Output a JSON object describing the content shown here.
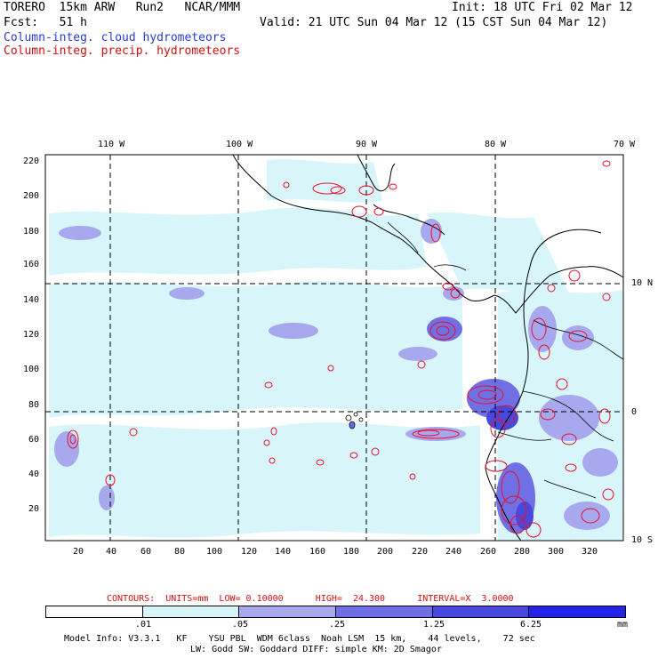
{
  "header": {
    "model": "TORERO  15km ARW   Run2   NCAR/MMM",
    "init": "Init: 18 UTC Fri 02 Mar 12",
    "fcst": "Fcst:   51 h",
    "valid": "Valid: 21 UTC Sun 04 Mar 12 (15 CST Sun 04 Mar 12)",
    "field1": "Column-integ. cloud hydrometeors",
    "field2": "Column-integ. precip. hydrometeors"
  },
  "map": {
    "lon_labels": [
      "110 W",
      "100 W",
      "90 W",
      "80 W",
      "70 W"
    ],
    "lat_labels": [
      "10 N",
      "0",
      "10 S"
    ],
    "y_ticks": [
      "220",
      "200",
      "180",
      "160",
      "140",
      "120",
      "100",
      "80",
      "60",
      "40",
      "20"
    ],
    "x_ticks": [
      "20",
      "40",
      "60",
      "80",
      "100",
      "120",
      "140",
      "160",
      "180",
      "200",
      "220",
      "240",
      "260",
      "280",
      "300",
      "320"
    ],
    "colors": {
      "land": "#000000",
      "precip": "#e8102a",
      "cloud_light": "#cdf3fa",
      "cloud_mid": "#a3a3f0",
      "cloud_dark": "#6b6be6"
    }
  },
  "contours_info": {
    "label": "CONTOURS:  UNITS=mm  LOW= 0.10000      HIGH=  24.300      INTERVAL=X  3.0000"
  },
  "legend": {
    "thresholds": [
      ".01",
      ".05",
      ".25",
      "1.25",
      "6.25"
    ],
    "units": "mm",
    "colors": [
      "#ffffff",
      "#d8f6fa",
      "#a8a8ee",
      "#7070e4",
      "#4848dc",
      "#2424e8"
    ]
  },
  "footer": {
    "line1": "Model Info: V3.3.1   KF    YSU PBL  WDM 6class  Noah LSM  15 km,    44 levels,    72 sec",
    "line2": "LW: Godd SW: Goddard DIFF: simple KM: 2D Smagor"
  }
}
